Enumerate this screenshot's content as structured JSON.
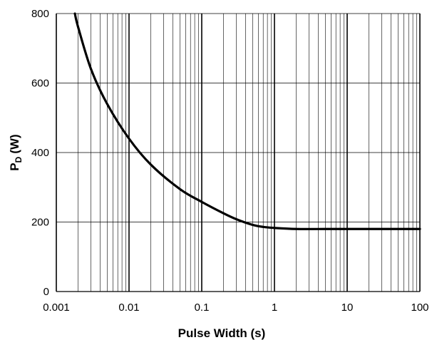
{
  "chart_data": {
    "type": "line",
    "title": "",
    "xlabel": "Pulse Width (s)",
    "ylabel_main": "P",
    "ylabel_sub": "D",
    "ylabel_unit": "(W)",
    "x_scale": "log",
    "xlim": [
      0.001,
      100
    ],
    "ylim": [
      0,
      800
    ],
    "grid": true,
    "x_ticks": [
      {
        "value": 0.001,
        "label": "0.001"
      },
      {
        "value": 0.01,
        "label": "0.01"
      },
      {
        "value": 0.1,
        "label": "0.1"
      },
      {
        "value": 1,
        "label": "1"
      },
      {
        "value": 10,
        "label": "10"
      },
      {
        "value": 100,
        "label": "100"
      }
    ],
    "y_ticks": [
      {
        "value": 0,
        "label": "0"
      },
      {
        "value": 200,
        "label": "200"
      },
      {
        "value": 400,
        "label": "400"
      },
      {
        "value": 600,
        "label": "600"
      },
      {
        "value": 800,
        "label": "800"
      }
    ],
    "series": [
      {
        "color": "#000000",
        "x": [
          0.0018,
          0.002,
          0.003,
          0.005,
          0.01,
          0.02,
          0.05,
          0.1,
          0.2,
          0.3,
          0.5,
          0.7,
          1,
          2,
          5,
          10,
          20,
          50,
          100
        ],
        "y": [
          800,
          760,
          640,
          540,
          440,
          365,
          295,
          258,
          225,
          208,
          192,
          186,
          183,
          180,
          180,
          180,
          180,
          180,
          180
        ]
      }
    ]
  }
}
